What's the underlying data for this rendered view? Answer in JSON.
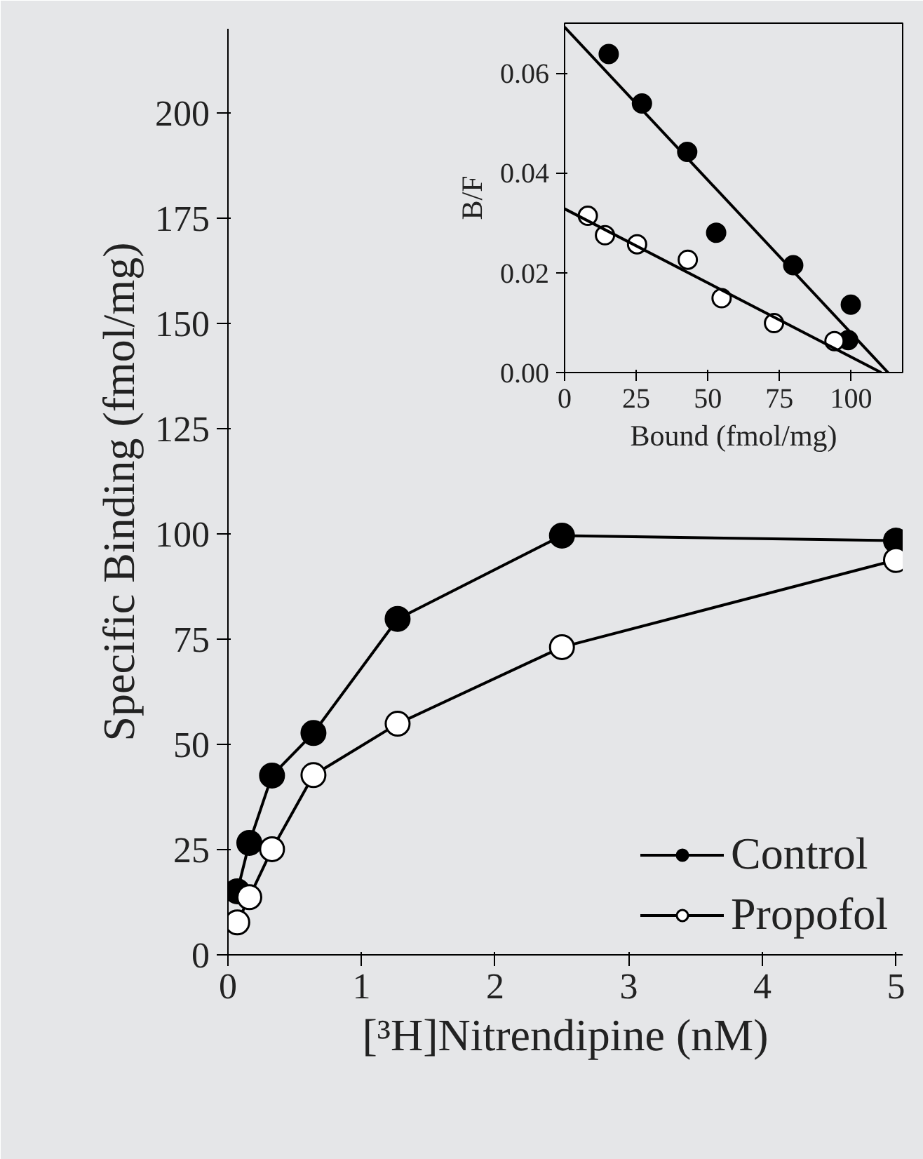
{
  "chart_data": [
    {
      "type": "line",
      "xlabel": "[³H]Nitrendipine (nM)",
      "ylabel": "Specific Binding (fmol/mg)",
      "x": [
        0.07,
        0.16,
        0.33,
        0.64,
        1.27,
        2.5,
        5
      ],
      "xlim": [
        0,
        5.05
      ],
      "ylim": [
        0,
        220
      ],
      "xticks": [
        0,
        1,
        2,
        3,
        4,
        5
      ],
      "yticks": [
        0,
        25,
        50,
        75,
        100,
        125,
        150,
        175,
        200
      ],
      "marker": "circle",
      "legend": "bottom right",
      "series": [
        {
          "name": "Control",
          "color": "#000000",
          "values": [
            15.1,
            26.6,
            42.6,
            52.7,
            79.8,
            99.6,
            98.4
          ]
        },
        {
          "name": "Propofol",
          "color": "#ffffff",
          "values": [
            7.7,
            13.7,
            25.1,
            42.7,
            54.9,
            73.1,
            93.8
          ]
        }
      ]
    },
    {
      "type": "scatter",
      "xlabel": "Bound (fmol/mg)",
      "ylabel": "B/F",
      "xlim": [
        0,
        118
      ],
      "ylim": [
        0,
        0.07
      ],
      "xticks": [
        0,
        25,
        50,
        75,
        100
      ],
      "yticks": [
        {
          "value": 0,
          "label": "0.00"
        },
        {
          "value": 0.02,
          "label": "0.02"
        },
        {
          "value": 0.04,
          "label": "0.04"
        },
        {
          "value": 0.06,
          "label": "0.06"
        }
      ],
      "marker": "circle",
      "series": [
        {
          "color": "#000000",
          "x": [
            15.4,
            27.0,
            42.8,
            52.9,
            79.8,
            99.9,
            99.0
          ],
          "values": [
            0.0638,
            0.0539,
            0.0442,
            0.028,
            0.0215,
            0.0136,
            0.0065
          ]
        },
        {
          "color": "#ffffff",
          "x": [
            8.1,
            14.1,
            25.3,
            43.0,
            54.8,
            73.1,
            94.2
          ],
          "values": [
            0.0314,
            0.0275,
            0.0257,
            0.0226,
            0.0149,
            0.0099,
            0.0063
          ]
        },
        {
          "type": "line",
          "marker": "none",
          "color": "#000000",
          "x": [
            0,
            112.9
          ],
          "values": [
            0.0692,
            0
          ]
        },
        {
          "type": "line",
          "marker": "none",
          "color": "#000000",
          "x": [
            0,
            110.5
          ],
          "values": [
            0.0328,
            0
          ]
        }
      ]
    }
  ]
}
